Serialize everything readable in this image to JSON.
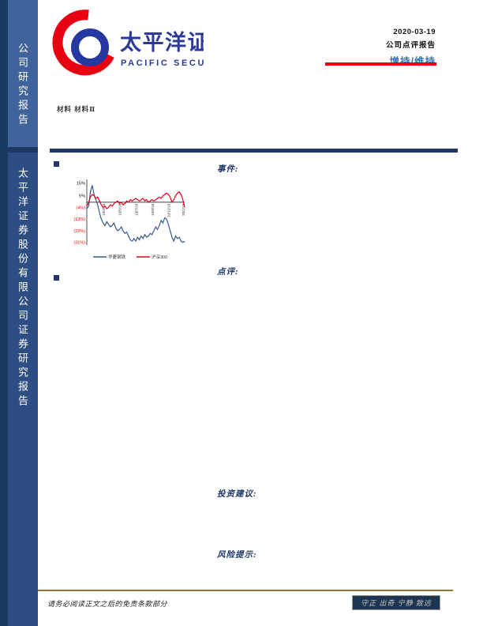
{
  "sidebar": {
    "top_label": "公司研究报告",
    "bottom_label": "太平洋证券股份有限公司证券研究报告"
  },
  "header": {
    "logo_cn": "太平洋证券",
    "logo_en": "PACIFIC SECURITIES",
    "logo_red": "#e60012",
    "logo_blue": "#2b3a96",
    "date": "2020-03-19",
    "report_type": "公司点评报告",
    "rating": "增持/维持",
    "rating_color": "#2e75b6",
    "underline_color": "#e60012",
    "sector": "材料 材料Ⅱ"
  },
  "sections": {
    "event": "事件:",
    "comment": "点评:",
    "advice": "投资建议:",
    "risk": "风险提示:"
  },
  "chart_data": {
    "type": "line",
    "title": "",
    "xlabel": "",
    "ylabel": "",
    "ylim": [
      -33,
      17
    ],
    "zero_line": 0,
    "grid": false,
    "legend_position": "bottom",
    "x_labels": [
      "19/3/18",
      "19/5/18",
      "19/7/18",
      "19/9/18",
      "19/11/18",
      "20/1/18"
    ],
    "x_label_indices": [
      10,
      19,
      28,
      37,
      46,
      54
    ],
    "y_ticks": [
      {
        "label": "15%",
        "value": 15,
        "color": "#000000"
      },
      {
        "label": "5%",
        "value": 5,
        "color": "#000000"
      },
      {
        "label": "(4%)",
        "value": -4,
        "color": "#ff0000"
      },
      {
        "label": "(13%)",
        "value": -13,
        "color": "#ff0000"
      },
      {
        "label": "(22%)",
        "value": -22,
        "color": "#ff0000"
      },
      {
        "label": "(31%)",
        "value": -31,
        "color": "#ff0000"
      }
    ],
    "series": [
      {
        "name": "华菱钢铁",
        "color": "#36598e",
        "values": [
          -5,
          -3,
          8,
          13,
          6,
          2,
          -2,
          -8,
          -13,
          -16,
          -18,
          -15,
          -17,
          -19,
          -18,
          -16,
          -20,
          -22,
          -21,
          -19,
          -22,
          -24,
          -23,
          -26,
          -29,
          -30,
          -28,
          -30,
          -27,
          -29,
          -26,
          -28,
          -25,
          -27,
          -26,
          -24,
          -25,
          -22,
          -19,
          -21,
          -18,
          -14,
          -16,
          -12,
          -13,
          -17,
          -22,
          -27,
          -30,
          -26,
          -28,
          -27,
          -30,
          -31,
          -30
        ]
      },
      {
        "name": "沪深300",
        "color": "#e0001c",
        "values": [
          -3,
          0,
          4,
          6,
          5,
          3,
          4,
          1,
          -2,
          -4,
          -3,
          -5,
          -4,
          -2,
          -3,
          -1,
          0,
          1,
          -1,
          0,
          -2,
          -1,
          1,
          0,
          2,
          1,
          2,
          3,
          2,
          1,
          2,
          3,
          1,
          2,
          0,
          1,
          2,
          1,
          2,
          3,
          4,
          3,
          5,
          6,
          7,
          6,
          4,
          0,
          2,
          5,
          7,
          8,
          6,
          2,
          -4
        ]
      }
    ]
  },
  "footer": {
    "disclaimer": "请务必阅读正文之后的免责条款部分",
    "slogan": "守正 出奇 宁静 致远",
    "line_color": "#8a7835"
  }
}
